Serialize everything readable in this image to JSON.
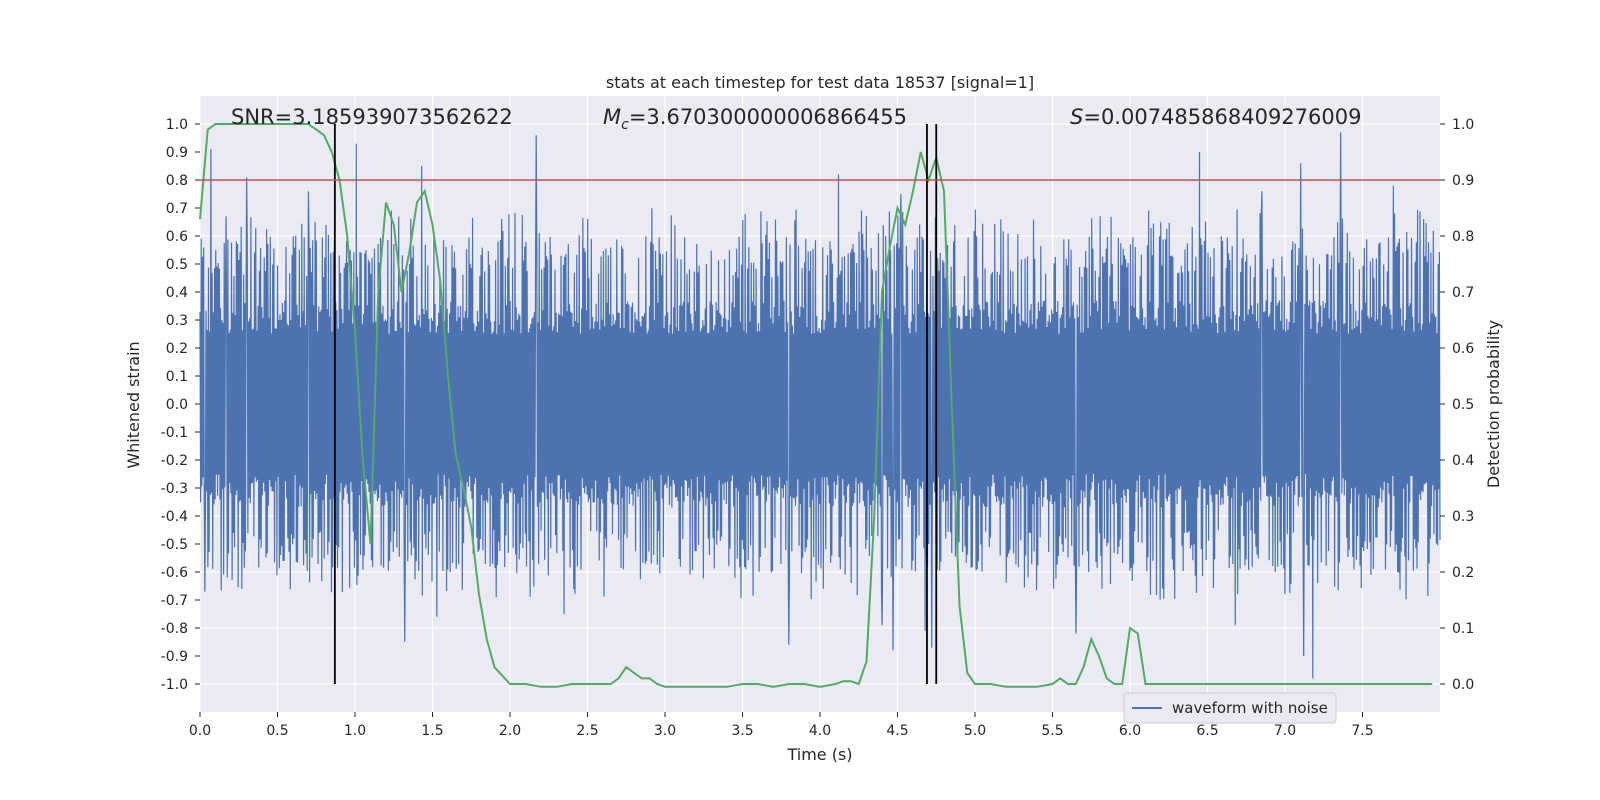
{
  "chart_data": {
    "type": "line",
    "title": "stats at each timestep for test data 18537 [signal=1]",
    "xlabel": "Time (s)",
    "ylabel_left": "Whitened strain",
    "ylabel_right": "Detection probability",
    "xlim": [
      0.0,
      8.0
    ],
    "ylim_left": [
      -1.1,
      1.1
    ],
    "ylim_right": [
      -0.05,
      1.05
    ],
    "x_ticks": [
      "0.0",
      "0.5",
      "1.0",
      "1.5",
      "2.0",
      "2.5",
      "3.0",
      "3.5",
      "4.0",
      "4.5",
      "5.0",
      "5.5",
      "6.0",
      "6.5",
      "7.0",
      "7.5"
    ],
    "x_tick_values": [
      0.0,
      0.5,
      1.0,
      1.5,
      2.0,
      2.5,
      3.0,
      3.5,
      4.0,
      4.5,
      5.0,
      5.5,
      6.0,
      6.5,
      7.0,
      7.5
    ],
    "y_left_ticks": [
      "1.0",
      "0.9",
      "0.8",
      "0.7",
      "0.6",
      "0.5",
      "0.4",
      "0.3",
      "0.2",
      "0.1",
      "0.0",
      "-0.1",
      "-0.2",
      "-0.3",
      "-0.4",
      "-0.5",
      "-0.6",
      "-0.7",
      "-0.8",
      "-0.9",
      "-1.0"
    ],
    "y_left_tick_values": [
      1.0,
      0.9,
      0.8,
      0.7,
      0.6,
      0.5,
      0.4,
      0.3,
      0.2,
      0.1,
      0.0,
      -0.1,
      -0.2,
      -0.3,
      -0.4,
      -0.5,
      -0.6,
      -0.7,
      -0.8,
      -0.9,
      -1.0
    ],
    "y_right_ticks": [
      "1.0",
      "0.9",
      "0.8",
      "0.7",
      "0.6",
      "0.5",
      "0.4",
      "0.3",
      "0.2",
      "0.1",
      "0.0"
    ],
    "y_right_tick_values": [
      1.0,
      0.9,
      0.8,
      0.7,
      0.6,
      0.5,
      0.4,
      0.3,
      0.2,
      0.1,
      0.0
    ],
    "annotations": {
      "snr": "SNR=3.185939073562622",
      "mc_symbol": "M",
      "mc_sub": "c",
      "mc_value": "=3.670300000006866455",
      "s_symbol": "S",
      "s_value": "=0.007485868409276009"
    },
    "legend": {
      "label": "waveform with noise",
      "location": "lower-right"
    },
    "threshold": {
      "value": 0.9,
      "axis": "right",
      "color": "#c44e52"
    },
    "vertical_lines": [
      0.87,
      4.69,
      4.75
    ],
    "waveform": {
      "name": "waveform with noise",
      "color": "#4c72b0",
      "seed": 18537,
      "n_samples": 2048,
      "core_amplitude": 0.25,
      "mid_amplitude": 0.45,
      "peaks": [
        {
          "t": 0.07,
          "v": 0.91
        },
        {
          "t": 0.17,
          "v": 0.67
        },
        {
          "t": 0.3,
          "v": 0.81
        },
        {
          "t": 0.7,
          "v": 0.76
        },
        {
          "t": 1.01,
          "v": 0.93
        },
        {
          "t": 1.43,
          "v": 0.85
        },
        {
          "t": 2.17,
          "v": 0.96
        },
        {
          "t": 4.12,
          "v": 0.82
        },
        {
          "t": 4.52,
          "v": 0.75
        },
        {
          "t": 6.45,
          "v": 0.9
        },
        {
          "t": 6.85,
          "v": 0.76
        },
        {
          "t": 7.1,
          "v": 0.86
        },
        {
          "t": 7.36,
          "v": 0.97
        },
        {
          "t": 7.7,
          "v": 0.78
        },
        {
          "t": 0.03,
          "v": -0.67
        },
        {
          "t": 1.32,
          "v": -0.85
        },
        {
          "t": 1.53,
          "v": -0.76
        },
        {
          "t": 2.35,
          "v": -0.75
        },
        {
          "t": 3.8,
          "v": -0.86
        },
        {
          "t": 4.4,
          "v": -0.79
        },
        {
          "t": 4.47,
          "v": -0.88
        },
        {
          "t": 4.68,
          "v": -0.81
        },
        {
          "t": 4.72,
          "v": -0.87
        },
        {
          "t": 5.65,
          "v": -0.82
        },
        {
          "t": 6.68,
          "v": -0.79
        },
        {
          "t": 7.12,
          "v": -0.9
        },
        {
          "t": 7.18,
          "v": -0.98
        }
      ]
    },
    "detection_probability": {
      "name": "detection probability",
      "color": "#55a868",
      "x": [
        0.0,
        0.05,
        0.1,
        0.2,
        0.3,
        0.4,
        0.5,
        0.6,
        0.7,
        0.75,
        0.8,
        0.85,
        0.9,
        0.95,
        1.0,
        1.05,
        1.1,
        1.15,
        1.2,
        1.25,
        1.3,
        1.35,
        1.4,
        1.45,
        1.5,
        1.55,
        1.6,
        1.65,
        1.7,
        1.75,
        1.8,
        1.85,
        1.9,
        2.0,
        2.1,
        2.2,
        2.3,
        2.4,
        2.5,
        2.55,
        2.6,
        2.65,
        2.7,
        2.75,
        2.8,
        2.85,
        2.9,
        2.95,
        3.0,
        3.1,
        3.2,
        3.3,
        3.4,
        3.5,
        3.6,
        3.7,
        3.8,
        3.9,
        4.0,
        4.1,
        4.15,
        4.2,
        4.25,
        4.3,
        4.35,
        4.4,
        4.45,
        4.5,
        4.55,
        4.6,
        4.65,
        4.7,
        4.75,
        4.8,
        4.85,
        4.9,
        4.95,
        5.0,
        5.1,
        5.2,
        5.3,
        5.4,
        5.5,
        5.55,
        5.6,
        5.65,
        5.7,
        5.75,
        5.8,
        5.85,
        5.9,
        5.95,
        6.0,
        6.05,
        6.1,
        6.15,
        6.2,
        6.25,
        6.3,
        6.4,
        6.5,
        6.55,
        6.6,
        6.65,
        6.7,
        6.8,
        6.85,
        6.9,
        6.95,
        7.0,
        7.05,
        7.1,
        7.15,
        7.2,
        7.3,
        7.4,
        7.5,
        7.6,
        7.7,
        7.8,
        7.9,
        7.95
      ],
      "y": [
        0.83,
        0.99,
        1.0,
        1.0,
        1.0,
        1.0,
        1.0,
        1.0,
        1.0,
        0.99,
        0.98,
        0.95,
        0.9,
        0.8,
        0.63,
        0.4,
        0.25,
        0.7,
        0.86,
        0.82,
        0.7,
        0.77,
        0.86,
        0.88,
        0.82,
        0.72,
        0.55,
        0.41,
        0.35,
        0.28,
        0.16,
        0.08,
        0.03,
        0.0,
        0.0,
        -0.005,
        -0.005,
        0.0,
        0.0,
        0.0,
        0.0,
        0.0,
        0.01,
        0.03,
        0.02,
        0.01,
        0.01,
        0.0,
        -0.005,
        -0.005,
        -0.005,
        -0.005,
        -0.005,
        0.0,
        0.0,
        -0.005,
        0.0,
        0.0,
        -0.005,
        0.0,
        0.005,
        0.005,
        0.0,
        0.04,
        0.3,
        0.7,
        0.78,
        0.85,
        0.82,
        0.88,
        0.95,
        0.9,
        0.94,
        0.88,
        0.5,
        0.14,
        0.02,
        0.0,
        0.0,
        -0.005,
        -0.005,
        -0.005,
        0.0,
        0.01,
        0.0,
        0.0,
        0.03,
        0.08,
        0.05,
        0.01,
        0.0,
        0.0,
        0.1,
        0.09,
        0.0,
        0.0,
        0.0,
        0.0,
        0.0,
        0.0,
        0.0,
        0.0,
        0.0,
        0.0,
        0.0,
        0.0,
        0.0,
        0.0,
        0.0,
        0.0,
        0.0,
        0.0,
        0.0,
        0.0,
        0.0,
        0.0,
        0.0,
        0.0,
        0.0,
        0.0,
        0.0,
        0.0
      ]
    }
  }
}
